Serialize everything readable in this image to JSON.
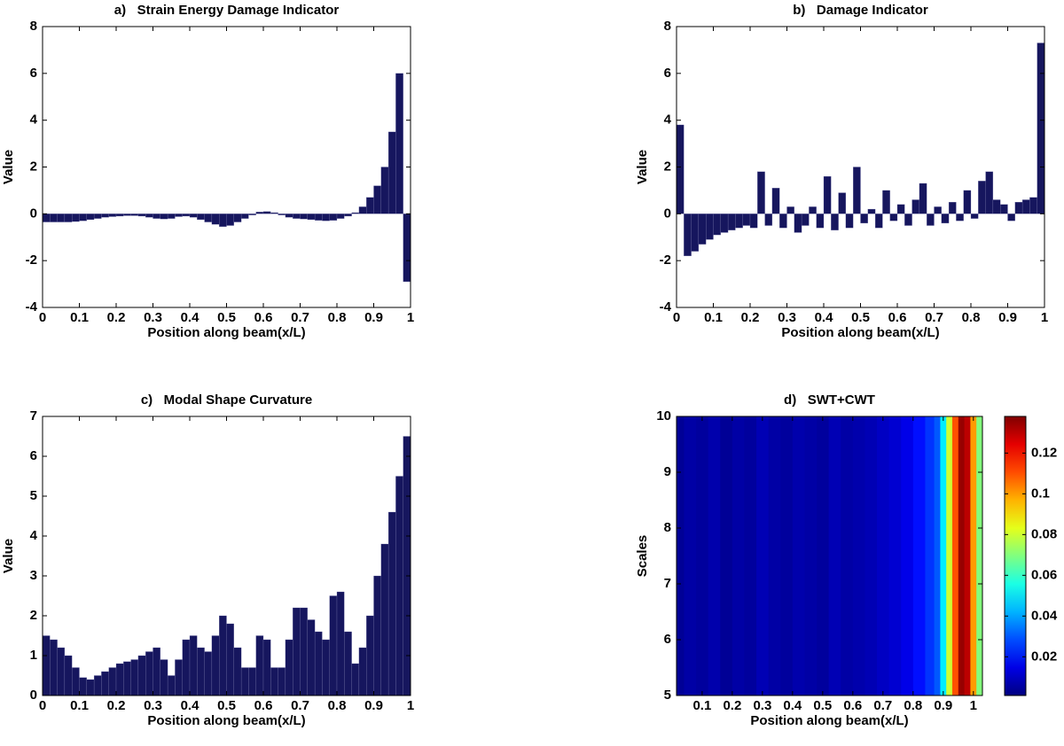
{
  "chart_data": [
    {
      "type": "bar",
      "title": "a)   Strain Energy Damage Indicator",
      "xlabel": "Position along beam(x/L)",
      "ylabel": "Value",
      "color": "#16165e",
      "x": [
        0.01,
        0.03,
        0.05,
        0.07,
        0.09,
        0.11,
        0.13,
        0.15,
        0.17,
        0.19,
        0.21,
        0.23,
        0.25,
        0.27,
        0.29,
        0.31,
        0.33,
        0.35,
        0.37,
        0.39,
        0.41,
        0.43,
        0.45,
        0.47,
        0.49,
        0.51,
        0.53,
        0.55,
        0.57,
        0.59,
        0.61,
        0.63,
        0.65,
        0.67,
        0.69,
        0.71,
        0.73,
        0.75,
        0.77,
        0.79,
        0.81,
        0.83,
        0.85,
        0.87,
        0.89,
        0.91,
        0.93,
        0.95,
        0.97,
        0.99
      ],
      "values": [
        -0.35,
        -0.35,
        -0.35,
        -0.35,
        -0.33,
        -0.3,
        -0.25,
        -0.2,
        -0.15,
        -0.12,
        -0.1,
        -0.08,
        -0.08,
        -0.1,
        -0.15,
        -0.2,
        -0.22,
        -0.2,
        -0.12,
        -0.1,
        -0.15,
        -0.25,
        -0.35,
        -0.45,
        -0.55,
        -0.5,
        -0.35,
        -0.2,
        -0.05,
        0.08,
        0.1,
        0.05,
        -0.05,
        -0.15,
        -0.2,
        -0.22,
        -0.25,
        -0.28,
        -0.3,
        -0.28,
        -0.2,
        -0.1,
        0.05,
        0.3,
        0.7,
        1.2,
        2.0,
        3.5,
        6.0,
        -2.9
      ],
      "xlim": [
        0,
        1
      ],
      "xticks": [
        0,
        0.1,
        0.2,
        0.3,
        0.4,
        0.5,
        0.6,
        0.7,
        0.8,
        0.9,
        1
      ],
      "ylim": [
        -4,
        8
      ],
      "yticks": [
        -4,
        -2,
        0,
        2,
        4,
        6,
        8
      ]
    },
    {
      "type": "bar",
      "title": "b)   Damage Indicator",
      "xlabel": "Position along beam(x/L)",
      "ylabel": "Value",
      "color": "#16165e",
      "x": [
        0.01,
        0.03,
        0.05,
        0.07,
        0.09,
        0.11,
        0.13,
        0.15,
        0.17,
        0.19,
        0.21,
        0.23,
        0.25,
        0.27,
        0.29,
        0.31,
        0.33,
        0.35,
        0.37,
        0.39,
        0.41,
        0.43,
        0.45,
        0.47,
        0.49,
        0.51,
        0.53,
        0.55,
        0.57,
        0.59,
        0.61,
        0.63,
        0.65,
        0.67,
        0.69,
        0.71,
        0.73,
        0.75,
        0.77,
        0.79,
        0.81,
        0.83,
        0.85,
        0.87,
        0.89,
        0.91,
        0.93,
        0.95,
        0.97,
        0.99
      ],
      "values": [
        3.8,
        -1.8,
        -1.6,
        -1.3,
        -1.1,
        -0.9,
        -0.8,
        -0.7,
        -0.6,
        -0.5,
        -0.6,
        1.8,
        -0.5,
        1.1,
        -0.6,
        0.3,
        -0.8,
        -0.5,
        0.3,
        -0.6,
        1.6,
        -0.7,
        0.9,
        -0.6,
        2.0,
        -0.4,
        0.2,
        -0.6,
        1.0,
        -0.3,
        0.4,
        -0.5,
        0.6,
        1.3,
        -0.5,
        0.3,
        -0.4,
        0.5,
        -0.3,
        1.0,
        -0.2,
        1.4,
        1.8,
        0.6,
        0.4,
        -0.3,
        0.5,
        0.6,
        0.7,
        7.3
      ],
      "xlim": [
        0,
        1
      ],
      "xticks": [
        0,
        0.1,
        0.2,
        0.3,
        0.4,
        0.5,
        0.6,
        0.7,
        0.8,
        0.9,
        1
      ],
      "ylim": [
        -4,
        8
      ],
      "yticks": [
        -4,
        -2,
        0,
        2,
        4,
        6,
        8
      ]
    },
    {
      "type": "bar",
      "title": "c)   Modal Shape Curvature",
      "xlabel": "Position along beam(x/L)",
      "ylabel": "Value",
      "color": "#16165e",
      "x": [
        0.01,
        0.03,
        0.05,
        0.07,
        0.09,
        0.11,
        0.13,
        0.15,
        0.17,
        0.19,
        0.21,
        0.23,
        0.25,
        0.27,
        0.29,
        0.31,
        0.33,
        0.35,
        0.37,
        0.39,
        0.41,
        0.43,
        0.45,
        0.47,
        0.49,
        0.51,
        0.53,
        0.55,
        0.57,
        0.59,
        0.61,
        0.63,
        0.65,
        0.67,
        0.69,
        0.71,
        0.73,
        0.75,
        0.77,
        0.79,
        0.81,
        0.83,
        0.85,
        0.87,
        0.89,
        0.91,
        0.93,
        0.95,
        0.97,
        0.99
      ],
      "values": [
        1.5,
        1.4,
        1.2,
        1.0,
        0.7,
        0.45,
        0.4,
        0.5,
        0.6,
        0.7,
        0.8,
        0.85,
        0.9,
        1.0,
        1.1,
        1.2,
        0.9,
        0.5,
        0.9,
        1.4,
        1.5,
        1.2,
        1.1,
        1.5,
        2.0,
        1.8,
        1.2,
        0.7,
        0.7,
        1.5,
        1.4,
        0.7,
        0.7,
        1.4,
        2.2,
        2.2,
        1.9,
        1.6,
        1.4,
        2.5,
        2.6,
        1.6,
        0.8,
        1.2,
        2.0,
        3.0,
        3.8,
        4.6,
        5.5,
        6.5
      ],
      "xlim": [
        0,
        1
      ],
      "xticks": [
        0,
        0.1,
        0.2,
        0.3,
        0.4,
        0.5,
        0.6,
        0.7,
        0.8,
        0.9,
        1
      ],
      "ylim": [
        0,
        7
      ],
      "yticks": [
        0,
        1,
        2,
        3,
        4,
        5,
        6,
        7
      ]
    },
    {
      "type": "heatmap",
      "title": "d)   SWT+CWT",
      "xlabel": "Position along beam(x/L)",
      "ylabel": "Scales",
      "x": [
        0.02,
        0.06,
        0.1,
        0.14,
        0.18,
        0.22,
        0.26,
        0.3,
        0.34,
        0.38,
        0.42,
        0.46,
        0.5,
        0.54,
        0.58,
        0.62,
        0.66,
        0.7,
        0.74,
        0.78,
        0.82,
        0.86,
        0.88,
        0.9,
        0.92,
        0.94,
        0.96,
        0.98,
        1.0,
        1.02
      ],
      "values": [
        0.004,
        0.006,
        0.005,
        0.007,
        0.004,
        0.006,
        0.005,
        0.008,
        0.006,
        0.005,
        0.007,
        0.006,
        0.005,
        0.008,
        0.006,
        0.007,
        0.008,
        0.01,
        0.012,
        0.015,
        0.02,
        0.025,
        0.03,
        0.05,
        0.08,
        0.11,
        0.135,
        0.13,
        0.1,
        0.07
      ],
      "xlim": [
        0.015,
        1.03
      ],
      "xticks": [
        0.1,
        0.2,
        0.3,
        0.4,
        0.5,
        0.6,
        0.7,
        0.8,
        0.9,
        1
      ],
      "ylim": [
        5,
        10
      ],
      "yticks": [
        5,
        6,
        7,
        8,
        9,
        10
      ],
      "clim": [
        0.001,
        0.138
      ],
      "cticks": [
        0.02,
        0.04,
        0.06,
        0.08,
        0.1,
        0.12
      ],
      "colormap": "jet"
    }
  ]
}
